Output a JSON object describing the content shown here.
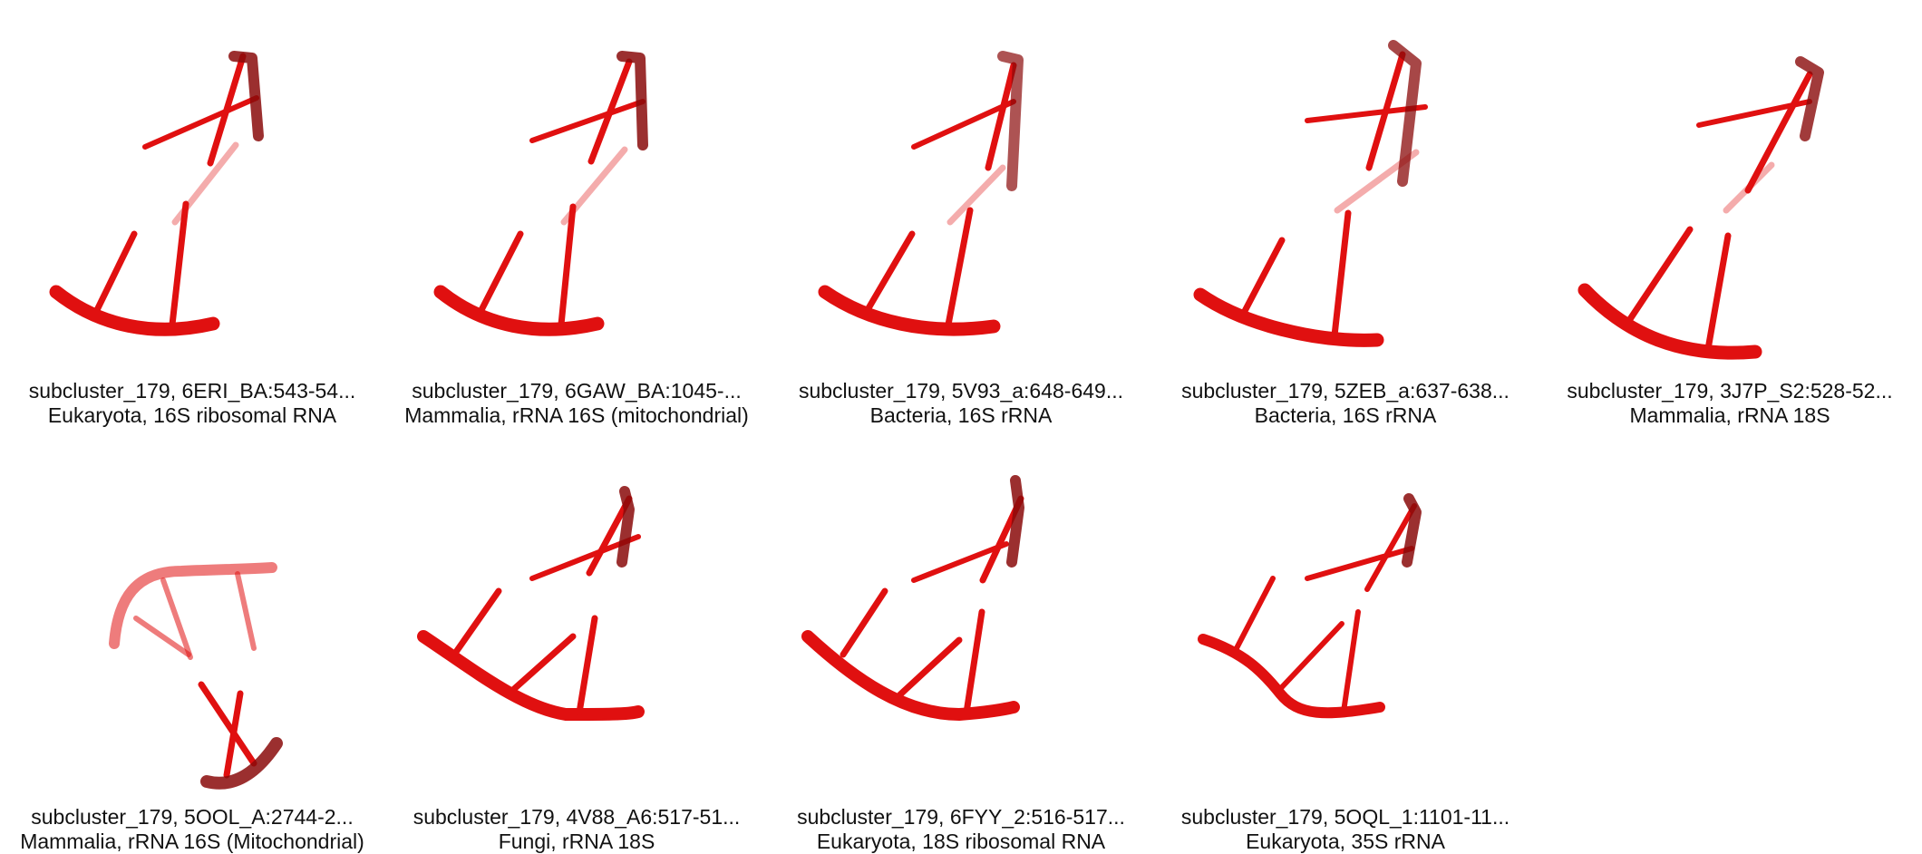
{
  "colors": {
    "strand": "#e01010",
    "strand_dark": "#8a0a0a",
    "caption_text": "#111111"
  },
  "panels": [
    {
      "id": "6ERI_BA",
      "title": "subcluster_179, 6ERI_BA:543-54...",
      "subtitle": "Eukaryota, 16S ribosomal RNA"
    },
    {
      "id": "6GAW_BA",
      "title": "subcluster_179, 6GAW_BA:1045-...",
      "subtitle": "Mammalia, rRNA 16S (mitochondrial)"
    },
    {
      "id": "5V93_a",
      "title": "subcluster_179, 5V93_a:648-649...",
      "subtitle": "Bacteria, 16S rRNA"
    },
    {
      "id": "5ZEB_a",
      "title": "subcluster_179, 5ZEB_a:637-638...",
      "subtitle": "Bacteria, 16S rRNA"
    },
    {
      "id": "3J7P_S2",
      "title": "subcluster_179, 3J7P_S2:528-52...",
      "subtitle": "Mammalia, rRNA 18S"
    },
    {
      "id": "5OOL_A",
      "title": "subcluster_179, 5OOL_A:2744-2...",
      "subtitle": "Mammalia, rRNA 16S (Mitochondrial)"
    },
    {
      "id": "4V88_A6",
      "title": "subcluster_179, 4V88_A6:517-51...",
      "subtitle": "Fungi, rRNA 18S"
    },
    {
      "id": "6FYY_2",
      "title": "subcluster_179, 6FYY_2:516-517...",
      "subtitle": "Eukaryota, 18S ribosomal RNA"
    },
    {
      "id": "5OQL_1",
      "title": "subcluster_179, 5OQL_1:1101-11...",
      "subtitle": "Eukaryota, 35S rRNA"
    }
  ]
}
